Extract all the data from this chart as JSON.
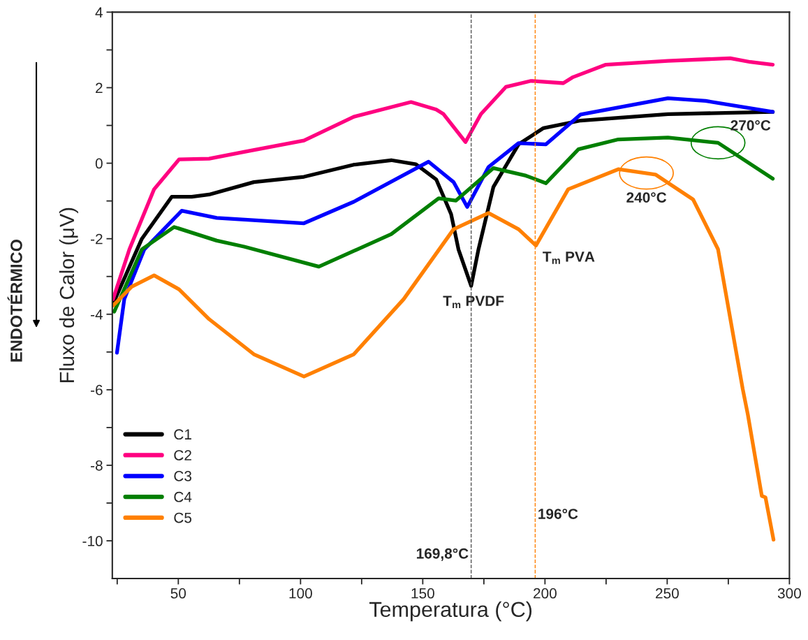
{
  "chart_data": {
    "type": "line",
    "xlabel": "Temperatura (°C)",
    "ylabel": "Fluxo de Calor (μV)",
    "xlim": [
      23,
      300
    ],
    "ylim": [
      -11,
      4
    ],
    "xticks": [
      {
        "value": 25,
        "label": null
      },
      50,
      {
        "value": 75,
        "label": null
      },
      100,
      {
        "value": 125,
        "label": null
      },
      150,
      {
        "value": 175,
        "label": null
      },
      200,
      {
        "value": 225,
        "label": null
      },
      250,
      {
        "value": 275,
        "label": null
      },
      300
    ],
    "yticks": [
      -10,
      {
        "value": -9,
        "label": null
      },
      -8,
      {
        "value": -7,
        "label": null
      },
      -6,
      {
        "value": -5,
        "label": null
      },
      -4,
      {
        "value": -3,
        "label": null
      },
      -2,
      {
        "value": -1,
        "label": null
      },
      0,
      {
        "value": 1,
        "label": null
      },
      2,
      {
        "value": 3,
        "label": null
      },
      4
    ],
    "grid": false,
    "legend": "bottom left",
    "line_style": "solid",
    "marker": "none",
    "series": [
      {
        "name": "C1",
        "color": "#000000",
        "x": [
          23.5,
          35.1,
          47.3,
          55.5,
          62.6,
          80.9,
          101.4,
          121.8,
          137.1,
          147.2,
          155.5,
          161.6,
          164.6,
          169.8,
          172.8,
          178.9,
          189.2,
          199.4,
          214.6,
          250.3,
          293.2
        ],
        "values": [
          -3.7,
          -2.0,
          -0.89,
          -0.89,
          -0.83,
          -0.5,
          -0.36,
          -0.04,
          0.08,
          -0.03,
          -0.43,
          -1.35,
          -2.28,
          -3.25,
          -2.28,
          -0.63,
          0.5,
          0.93,
          1.13,
          1.3,
          1.36
        ]
      },
      {
        "name": "C2",
        "color": "#ff0080",
        "x": [
          23.3,
          30.0,
          40.1,
          50.3,
          62.6,
          76.9,
          101.4,
          121.8,
          145.2,
          155.5,
          158.5,
          167.5,
          173.8,
          184.0,
          194.3,
          207.5,
          211.5,
          224.9,
          250.3,
          275.8,
          284.0,
          293.2
        ],
        "values": [
          -3.6,
          -2.28,
          -0.69,
          0.1,
          0.12,
          0.3,
          0.6,
          1.23,
          1.62,
          1.42,
          1.3,
          0.56,
          1.3,
          2.02,
          2.18,
          2.12,
          2.28,
          2.61,
          2.71,
          2.78,
          2.68,
          2.61
        ]
      },
      {
        "name": "C3",
        "color": "#0000ff",
        "x": [
          24.9,
          27.9,
          36.1,
          51.4,
          65.7,
          101.4,
          121.8,
          152.4,
          162.6,
          168.2,
          176.9,
          189.2,
          200.4,
          214.6,
          250.3,
          265.7,
          293.2
        ],
        "values": [
          -5.02,
          -3.6,
          -2.28,
          -1.26,
          -1.45,
          -1.59,
          -1.02,
          0.04,
          -0.5,
          -1.16,
          -0.1,
          0.53,
          0.5,
          1.29,
          1.72,
          1.65,
          1.36
        ]
      },
      {
        "name": "C4",
        "color": "#007f00",
        "x": [
          23.8,
          35.1,
          48.3,
          65.7,
          76.9,
          107.5,
          137.1,
          156.5,
          163.6,
          178.9,
          192.2,
          200.4,
          213.7,
          230.0,
          250.3,
          270.8,
          293.2
        ],
        "values": [
          -3.93,
          -2.28,
          -1.69,
          -2.05,
          -2.21,
          -2.74,
          -1.88,
          -0.93,
          -0.99,
          -0.13,
          -0.33,
          -0.53,
          0.37,
          0.63,
          0.68,
          0.54,
          -0.41
        ]
      },
      {
        "name": "C5",
        "color": "#ff8000",
        "x": [
          23.3,
          30.9,
          40.1,
          50.3,
          62.6,
          80.9,
          101.4,
          121.8,
          142.2,
          162.6,
          176.9,
          189.2,
          196.3,
          209.5,
          230.0,
          245.2,
          260.6,
          270.8,
          280.9,
          283.0,
          288.7,
          290.2,
          293.5
        ],
        "values": [
          -3.77,
          -3.27,
          -2.97,
          -3.34,
          -4.13,
          -5.06,
          -5.65,
          -5.06,
          -3.6,
          -1.75,
          -1.32,
          -1.75,
          -2.18,
          -0.69,
          -0.16,
          -0.3,
          -0.96,
          -2.28,
          -5.98,
          -6.66,
          -8.81,
          -8.85,
          -9.97
        ]
      }
    ],
    "ref_lines": [
      {
        "axis": "x",
        "value": 169.8,
        "label": "169,8°C",
        "color": "#555555",
        "line_style": "dashed"
      },
      {
        "axis": "x",
        "value": 196,
        "label": "196°C",
        "color": "#ff8000",
        "line_style": "dashed"
      }
    ],
    "annotations": [
      "ENDOTÉRMICO",
      {
        "text": "T$_{m}$ PVDF",
        "x": 169.8,
        "y": -3.25
      },
      {
        "text": "T$_{m}$ PVA",
        "x": 196,
        "y": -2.18
      },
      {
        "text": "240°C",
        "x": 241.5,
        "y": -0.26
      },
      {
        "text": "270°C",
        "x": 270.8,
        "y": 0.54
      }
    ]
  }
}
